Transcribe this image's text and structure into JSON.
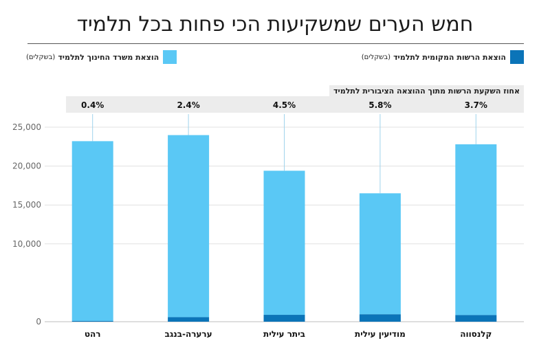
{
  "chart_data": {
    "type": "bar",
    "title": "חמש הערים שמשקיעות הכי פחות בכל תלמיד",
    "categories": [
      "קלנסווה",
      "מודיעין עילית",
      "ביתר עילית",
      "ערערה-בנגב",
      "רהט"
    ],
    "series": [
      {
        "name": "הוצאת הרשות המקומית לתלמיד",
        "unit": "(בשקלים)",
        "color": "#0b74b8",
        "values": [
          850,
          950,
          880,
          580,
          100
        ]
      },
      {
        "name": "הוצאת משרד החינוך לתלמיד",
        "unit": "(בשקלים)",
        "color": "#5ac8f5",
        "values": [
          21950,
          15550,
          18520,
          23400,
          23100
        ]
      }
    ],
    "percent_title": "אחוז השקעת הרשות מתוך ההוצאה הציבורית לתלמיד",
    "percent_labels": [
      "3.7%",
      "5.8%",
      "4.5%",
      "2.4%",
      "0.4%"
    ],
    "y_ticks": [
      "25,000",
      "20,000",
      "15,000",
      "10,000",
      "0"
    ],
    "y_tick_values": [
      25000,
      20000,
      15000,
      10000,
      0
    ],
    "ylim": [
      0,
      25000
    ],
    "grid": true,
    "legend_position": "top"
  }
}
